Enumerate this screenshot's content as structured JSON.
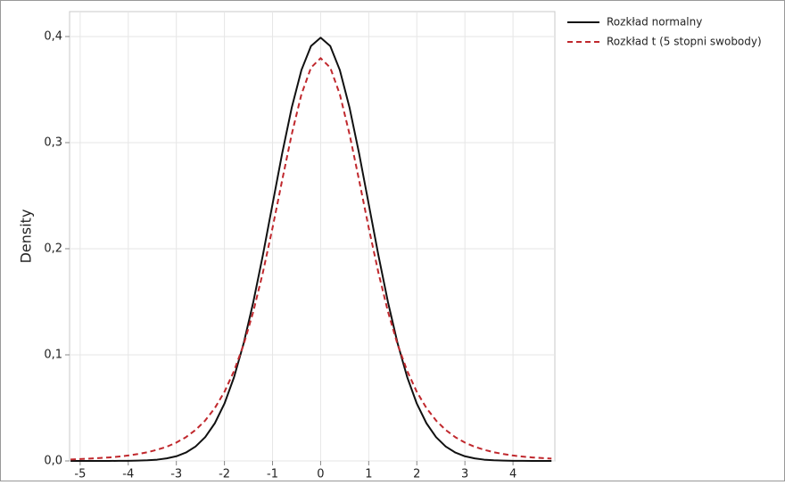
{
  "chart_data": {
    "type": "line",
    "ylabel": "Density",
    "x": [
      -5.2,
      -5.0,
      -4.8,
      -4.6,
      -4.4,
      -4.2,
      -4.0,
      -3.8,
      -3.6,
      -3.4,
      -3.2,
      -3.0,
      -2.8,
      -2.6,
      -2.4,
      -2.2,
      -2.0,
      -1.8,
      -1.6,
      -1.4,
      -1.2,
      -1.0,
      -0.8,
      -0.6,
      -0.4,
      -0.2,
      0,
      0.2,
      0.4,
      0.6,
      0.8,
      1.0,
      1.2,
      1.4,
      1.6,
      1.8,
      2.0,
      2.2,
      2.4,
      2.6,
      2.8,
      3.0,
      3.2,
      3.4,
      3.6,
      3.8,
      4.0,
      4.2,
      4.4,
      4.6,
      4.8
    ],
    "series": [
      {
        "name": "Rozkład normalny",
        "color": "#111111",
        "dashed": false,
        "values": [
          0,
          0,
          0,
          0,
          0,
          0.0001,
          0.0001,
          0.0003,
          0.0006,
          0.0012,
          0.0024,
          0.0044,
          0.0079,
          0.0136,
          0.0224,
          0.0355,
          0.054,
          0.079,
          0.1109,
          0.1497,
          0.1942,
          0.242,
          0.2897,
          0.3332,
          0.3683,
          0.391,
          0.3989,
          0.391,
          0.3683,
          0.3332,
          0.2897,
          0.242,
          0.1942,
          0.1497,
          0.1109,
          0.079,
          0.054,
          0.0355,
          0.0224,
          0.0136,
          0.0079,
          0.0044,
          0.0024,
          0.0012,
          0.0006,
          0.0003,
          0.0001,
          0.0001,
          0,
          0,
          0
        ]
      },
      {
        "name": "Rozkład t (5 stopni swobody)",
        "color": "#c0282d",
        "dashed": true,
        "values": [
          0.0014,
          0.0018,
          0.0022,
          0.0027,
          0.0033,
          0.0041,
          0.0051,
          0.0065,
          0.0082,
          0.0105,
          0.0134,
          0.0173,
          0.0224,
          0.0292,
          0.0381,
          0.0498,
          0.0651,
          0.0848,
          0.1098,
          0.1407,
          0.1777,
          0.2197,
          0.2645,
          0.3081,
          0.3454,
          0.3707,
          0.3796,
          0.3707,
          0.3454,
          0.3081,
          0.2645,
          0.2197,
          0.1777,
          0.1407,
          0.1098,
          0.0848,
          0.0651,
          0.0498,
          0.0381,
          0.0292,
          0.0224,
          0.0173,
          0.0134,
          0.0105,
          0.0082,
          0.0065,
          0.0051,
          0.0041,
          0.0033,
          0.0027,
          0.0022
        ]
      }
    ],
    "xlim": [
      -5.22,
      4.87
    ],
    "ylim": [
      0,
      0.4235
    ],
    "xticks": [
      -5,
      -4,
      -3,
      -2,
      -1,
      0,
      1,
      2,
      3,
      4
    ],
    "yticks": [
      {
        "value": 0,
        "label": "0,0"
      },
      {
        "value": 0.1,
        "label": "0,1"
      },
      {
        "value": 0.2,
        "label": "0,2"
      },
      {
        "value": 0.3,
        "label": "0,3"
      },
      {
        "value": 0.4,
        "label": "0,4"
      }
    ],
    "grid": true
  }
}
